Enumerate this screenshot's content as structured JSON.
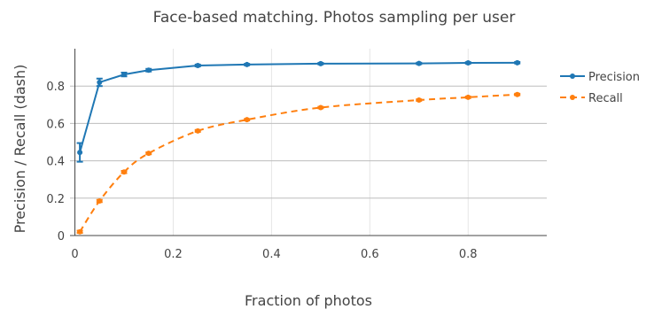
{
  "chart_data": {
    "type": "line",
    "title": "Face-based matching. Photos sampling per user",
    "xlabel": "Fraction of photos",
    "ylabel": "Precision / Recall (dash)",
    "xlim": [
      -0.01,
      0.96
    ],
    "ylim": [
      0,
      1.0
    ],
    "x_ticks": [
      0,
      0.2,
      0.4,
      0.6,
      0.8
    ],
    "x_tick_labels": [
      "0",
      "0.2",
      "0.4",
      "0.6",
      "0.8"
    ],
    "y_ticks": [
      0,
      0.2,
      0.4,
      0.6,
      0.8
    ],
    "y_tick_labels": [
      "0",
      "0.2",
      "0.4",
      "0.6",
      "0.8"
    ],
    "grid": true,
    "legend_position": "top-right",
    "x": [
      0.01,
      0.05,
      0.1,
      0.15,
      0.25,
      0.35,
      0.5,
      0.7,
      0.8,
      0.9
    ],
    "series": [
      {
        "name": "Precision",
        "color": "#1f77b4",
        "dash": false,
        "values": [
          0.445,
          0.82,
          0.862,
          0.885,
          0.91,
          0.915,
          0.92,
          0.921,
          0.924,
          0.925
        ],
        "error": [
          0.05,
          0.02,
          0.01,
          0.007,
          0.005,
          0.004,
          0.004,
          0.004,
          0.004,
          0.004
        ]
      },
      {
        "name": "Recall",
        "color": "#ff7f0e",
        "dash": true,
        "values": [
          0.02,
          0.185,
          0.34,
          0.44,
          0.56,
          0.62,
          0.685,
          0.725,
          0.74,
          0.755
        ],
        "error": [
          0.006,
          0.006,
          0.006,
          0.005,
          0.005,
          0.004,
          0.004,
          0.004,
          0.004,
          0.004
        ]
      }
    ]
  }
}
